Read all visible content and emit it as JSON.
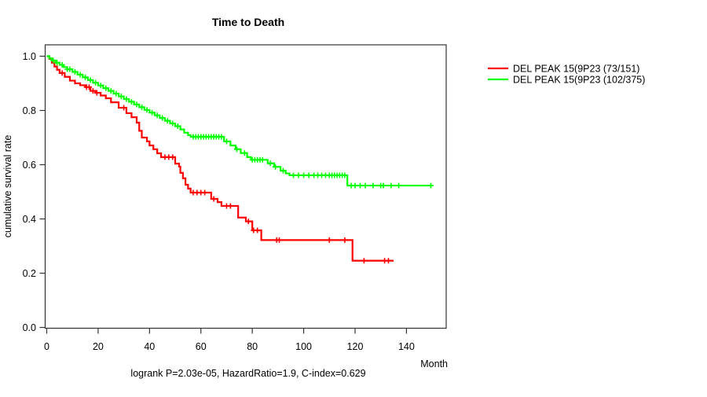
{
  "chart_data": {
    "type": "line",
    "subtype": "kaplan-meier-step",
    "title": "Time to Death",
    "xlabel": "Month",
    "ylabel": "cumulative survival rate",
    "annotation": "logrank P=2.03e-05, HazardRatio=1.9, C-index=0.629",
    "stats": {
      "logrank_p": "2.03e-05",
      "hazard_ratio": "1.9",
      "c_index": "0.629"
    },
    "xlim": [
      0,
      155
    ],
    "ylim": [
      0.0,
      1.0
    ],
    "x_ticks": [
      0,
      20,
      40,
      60,
      80,
      100,
      120,
      140
    ],
    "y_ticks": [
      0.0,
      0.2,
      0.4,
      0.6,
      0.8,
      1.0
    ],
    "y_tick_labels": [
      "0.0",
      "0.2",
      "0.4",
      "0.6",
      "0.8",
      "1.0"
    ],
    "grid": false,
    "legend_position": "right-outside",
    "series": [
      {
        "name": "DEL PEAK 15(9P23 (73/151)",
        "events": 73,
        "n": 151,
        "color": "#ff0000",
        "end_time": 135,
        "steps": [
          [
            0,
            1.0
          ],
          [
            1,
            0.99
          ],
          [
            2,
            0.976
          ],
          [
            3,
            0.962
          ],
          [
            4,
            0.95
          ],
          [
            5,
            0.938
          ],
          [
            7,
            0.924
          ],
          [
            9,
            0.91
          ],
          [
            11,
            0.9
          ],
          [
            13,
            0.893
          ],
          [
            15,
            0.886
          ],
          [
            17,
            0.872
          ],
          [
            19,
            0.865
          ],
          [
            21,
            0.855
          ],
          [
            23,
            0.845
          ],
          [
            25,
            0.83
          ],
          [
            28,
            0.81
          ],
          [
            31,
            0.79
          ],
          [
            33,
            0.775
          ],
          [
            35,
            0.755
          ],
          [
            36,
            0.725
          ],
          [
            37,
            0.7
          ],
          [
            39,
            0.686
          ],
          [
            40,
            0.671
          ],
          [
            41.5,
            0.657
          ],
          [
            43,
            0.642
          ],
          [
            44.5,
            0.628
          ],
          [
            50,
            0.604
          ],
          [
            51.5,
            0.593
          ],
          [
            52,
            0.57
          ],
          [
            53,
            0.55
          ],
          [
            54,
            0.526
          ],
          [
            55,
            0.512
          ],
          [
            56,
            0.497
          ],
          [
            64,
            0.474
          ],
          [
            66.5,
            0.462
          ],
          [
            68,
            0.448
          ],
          [
            74.5,
            0.405
          ],
          [
            77.5,
            0.391
          ],
          [
            80,
            0.358
          ],
          [
            83.5,
            0.322
          ],
          [
            119,
            0.246
          ]
        ],
        "censor_times": [
          6,
          15.5,
          16.5,
          18,
          19.5,
          30,
          46,
          47.5,
          49,
          57,
          58.5,
          60,
          61.5,
          65,
          70,
          71.5,
          78.5,
          80.5,
          82,
          89.5,
          90.5,
          110,
          116,
          123.5,
          131.5,
          133
        ]
      },
      {
        "name": "DEL PEAK 15(9P23 (102/375)",
        "events": 102,
        "n": 375,
        "color": "#00ff00",
        "end_time": 150,
        "steps": [
          [
            0,
            1.0
          ],
          [
            1,
            0.992
          ],
          [
            2,
            0.984
          ],
          [
            3.5,
            0.976
          ],
          [
            5,
            0.968
          ],
          [
            6.5,
            0.96
          ],
          [
            8,
            0.952
          ],
          [
            10,
            0.942
          ],
          [
            12,
            0.932
          ],
          [
            14,
            0.922
          ],
          [
            16,
            0.912
          ],
          [
            18,
            0.902
          ],
          [
            20,
            0.892
          ],
          [
            22,
            0.882
          ],
          [
            24,
            0.872
          ],
          [
            26,
            0.862
          ],
          [
            28,
            0.852
          ],
          [
            30,
            0.842
          ],
          [
            32,
            0.832
          ],
          [
            34,
            0.822
          ],
          [
            36,
            0.812
          ],
          [
            38,
            0.802
          ],
          [
            40,
            0.792
          ],
          [
            42,
            0.782
          ],
          [
            44,
            0.772
          ],
          [
            46,
            0.762
          ],
          [
            48,
            0.752
          ],
          [
            50,
            0.742
          ],
          [
            52,
            0.73
          ],
          [
            53.5,
            0.718
          ],
          [
            55,
            0.709
          ],
          [
            56,
            0.703
          ],
          [
            69,
            0.686
          ],
          [
            71.5,
            0.671
          ],
          [
            73.5,
            0.657
          ],
          [
            75.5,
            0.643
          ],
          [
            78,
            0.628
          ],
          [
            79.5,
            0.618
          ],
          [
            86,
            0.605
          ],
          [
            88.5,
            0.592
          ],
          [
            91,
            0.578
          ],
          [
            93,
            0.568
          ],
          [
            94.5,
            0.561
          ],
          [
            117,
            0.523
          ]
        ],
        "censor_times": [
          2.5,
          4,
          6,
          8,
          9,
          11,
          13,
          15,
          17,
          19,
          21,
          23,
          25,
          27,
          29,
          31,
          33,
          35,
          37,
          39,
          41,
          43,
          45,
          47,
          49,
          51,
          57,
          58,
          59,
          60,
          61,
          62,
          63,
          64,
          65,
          66,
          67,
          68,
          70,
          74,
          77,
          80,
          81,
          82,
          83,
          84,
          87,
          89,
          92,
          96,
          98,
          100,
          102,
          104,
          105.5,
          107,
          108.5,
          110,
          111,
          112,
          113,
          114,
          115,
          116,
          118.5,
          120,
          122,
          124,
          127,
          130,
          131,
          134,
          137,
          149.5
        ]
      }
    ]
  }
}
